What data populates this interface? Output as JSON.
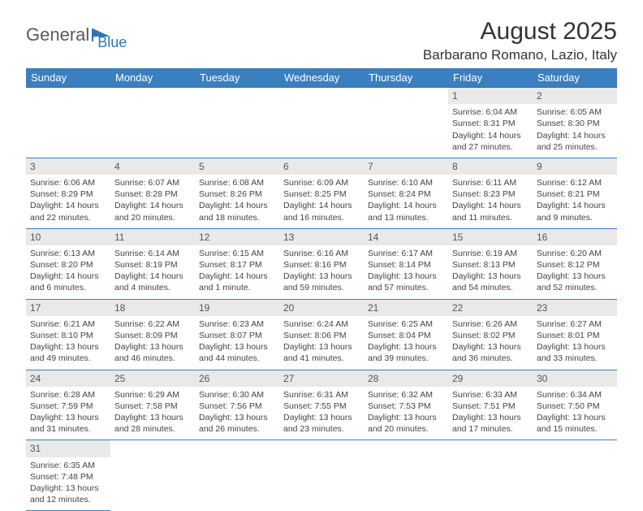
{
  "logo": {
    "part1": "General",
    "part2": "Blue"
  },
  "title": "August 2025",
  "location": "Barbarano Romano, Lazio, Italy",
  "colors": {
    "header_bg": "#3a7fc0",
    "header_text": "#ffffff",
    "row_divider": "#3a7fc0",
    "daybar_bg": "#e9e9e9",
    "body_text": "#444444",
    "logo_gray": "#5a5a5a",
    "logo_blue": "#2e75b6"
  },
  "dayHeaders": [
    "Sunday",
    "Monday",
    "Tuesday",
    "Wednesday",
    "Thursday",
    "Friday",
    "Saturday"
  ],
  "weeks": [
    [
      null,
      null,
      null,
      null,
      null,
      {
        "n": "1",
        "sunrise": "Sunrise: 6:04 AM",
        "sunset": "Sunset: 8:31 PM",
        "day": "Daylight: 14 hours and 27 minutes."
      },
      {
        "n": "2",
        "sunrise": "Sunrise: 6:05 AM",
        "sunset": "Sunset: 8:30 PM",
        "day": "Daylight: 14 hours and 25 minutes."
      }
    ],
    [
      {
        "n": "3",
        "sunrise": "Sunrise: 6:06 AM",
        "sunset": "Sunset: 8:29 PM",
        "day": "Daylight: 14 hours and 22 minutes."
      },
      {
        "n": "4",
        "sunrise": "Sunrise: 6:07 AM",
        "sunset": "Sunset: 8:28 PM",
        "day": "Daylight: 14 hours and 20 minutes."
      },
      {
        "n": "5",
        "sunrise": "Sunrise: 6:08 AM",
        "sunset": "Sunset: 8:26 PM",
        "day": "Daylight: 14 hours and 18 minutes."
      },
      {
        "n": "6",
        "sunrise": "Sunrise: 6:09 AM",
        "sunset": "Sunset: 8:25 PM",
        "day": "Daylight: 14 hours and 16 minutes."
      },
      {
        "n": "7",
        "sunrise": "Sunrise: 6:10 AM",
        "sunset": "Sunset: 8:24 PM",
        "day": "Daylight: 14 hours and 13 minutes."
      },
      {
        "n": "8",
        "sunrise": "Sunrise: 6:11 AM",
        "sunset": "Sunset: 8:23 PM",
        "day": "Daylight: 14 hours and 11 minutes."
      },
      {
        "n": "9",
        "sunrise": "Sunrise: 6:12 AM",
        "sunset": "Sunset: 8:21 PM",
        "day": "Daylight: 14 hours and 9 minutes."
      }
    ],
    [
      {
        "n": "10",
        "sunrise": "Sunrise: 6:13 AM",
        "sunset": "Sunset: 8:20 PM",
        "day": "Daylight: 14 hours and 6 minutes."
      },
      {
        "n": "11",
        "sunrise": "Sunrise: 6:14 AM",
        "sunset": "Sunset: 8:19 PM",
        "day": "Daylight: 14 hours and 4 minutes."
      },
      {
        "n": "12",
        "sunrise": "Sunrise: 6:15 AM",
        "sunset": "Sunset: 8:17 PM",
        "day": "Daylight: 14 hours and 1 minute."
      },
      {
        "n": "13",
        "sunrise": "Sunrise: 6:16 AM",
        "sunset": "Sunset: 8:16 PM",
        "day": "Daylight: 13 hours and 59 minutes."
      },
      {
        "n": "14",
        "sunrise": "Sunrise: 6:17 AM",
        "sunset": "Sunset: 8:14 PM",
        "day": "Daylight: 13 hours and 57 minutes."
      },
      {
        "n": "15",
        "sunrise": "Sunrise: 6:19 AM",
        "sunset": "Sunset: 8:13 PM",
        "day": "Daylight: 13 hours and 54 minutes."
      },
      {
        "n": "16",
        "sunrise": "Sunrise: 6:20 AM",
        "sunset": "Sunset: 8:12 PM",
        "day": "Daylight: 13 hours and 52 minutes."
      }
    ],
    [
      {
        "n": "17",
        "sunrise": "Sunrise: 6:21 AM",
        "sunset": "Sunset: 8:10 PM",
        "day": "Daylight: 13 hours and 49 minutes."
      },
      {
        "n": "18",
        "sunrise": "Sunrise: 6:22 AM",
        "sunset": "Sunset: 8:09 PM",
        "day": "Daylight: 13 hours and 46 minutes."
      },
      {
        "n": "19",
        "sunrise": "Sunrise: 6:23 AM",
        "sunset": "Sunset: 8:07 PM",
        "day": "Daylight: 13 hours and 44 minutes."
      },
      {
        "n": "20",
        "sunrise": "Sunrise: 6:24 AM",
        "sunset": "Sunset: 8:06 PM",
        "day": "Daylight: 13 hours and 41 minutes."
      },
      {
        "n": "21",
        "sunrise": "Sunrise: 6:25 AM",
        "sunset": "Sunset: 8:04 PM",
        "day": "Daylight: 13 hours and 39 minutes."
      },
      {
        "n": "22",
        "sunrise": "Sunrise: 6:26 AM",
        "sunset": "Sunset: 8:02 PM",
        "day": "Daylight: 13 hours and 36 minutes."
      },
      {
        "n": "23",
        "sunrise": "Sunrise: 6:27 AM",
        "sunset": "Sunset: 8:01 PM",
        "day": "Daylight: 13 hours and 33 minutes."
      }
    ],
    [
      {
        "n": "24",
        "sunrise": "Sunrise: 6:28 AM",
        "sunset": "Sunset: 7:59 PM",
        "day": "Daylight: 13 hours and 31 minutes."
      },
      {
        "n": "25",
        "sunrise": "Sunrise: 6:29 AM",
        "sunset": "Sunset: 7:58 PM",
        "day": "Daylight: 13 hours and 28 minutes."
      },
      {
        "n": "26",
        "sunrise": "Sunrise: 6:30 AM",
        "sunset": "Sunset: 7:56 PM",
        "day": "Daylight: 13 hours and 26 minutes."
      },
      {
        "n": "27",
        "sunrise": "Sunrise: 6:31 AM",
        "sunset": "Sunset: 7:55 PM",
        "day": "Daylight: 13 hours and 23 minutes."
      },
      {
        "n": "28",
        "sunrise": "Sunrise: 6:32 AM",
        "sunset": "Sunset: 7:53 PM",
        "day": "Daylight: 13 hours and 20 minutes."
      },
      {
        "n": "29",
        "sunrise": "Sunrise: 6:33 AM",
        "sunset": "Sunset: 7:51 PM",
        "day": "Daylight: 13 hours and 17 minutes."
      },
      {
        "n": "30",
        "sunrise": "Sunrise: 6:34 AM",
        "sunset": "Sunset: 7:50 PM",
        "day": "Daylight: 13 hours and 15 minutes."
      }
    ],
    [
      {
        "n": "31",
        "sunrise": "Sunrise: 6:35 AM",
        "sunset": "Sunset: 7:48 PM",
        "day": "Daylight: 13 hours and 12 minutes."
      },
      null,
      null,
      null,
      null,
      null,
      null
    ]
  ]
}
